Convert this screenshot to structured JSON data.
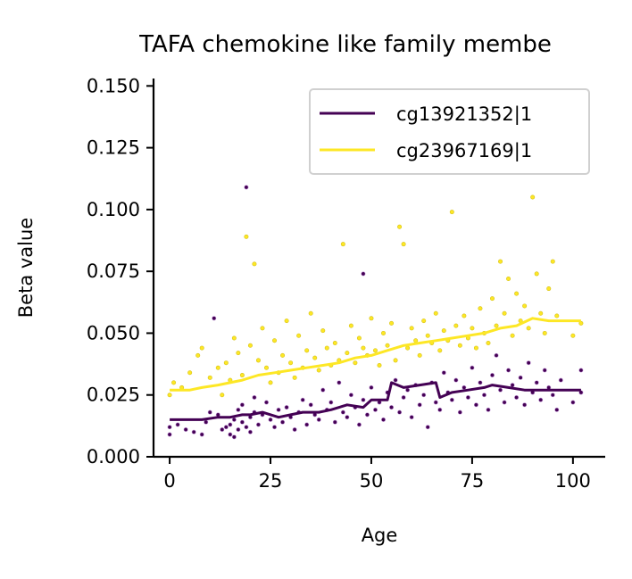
{
  "chart_data": {
    "type": "scatter",
    "title": "TAFA chemokine like family membe",
    "xlabel": "Age",
    "ylabel": "Beta value",
    "xlim": [
      -4,
      108
    ],
    "ylim": [
      0,
      0.153
    ],
    "xticks": [
      0,
      25,
      50,
      75,
      100
    ],
    "xtick_labels": [
      "0",
      "25",
      "50",
      "75",
      "100"
    ],
    "yticks": [
      0.0,
      0.025,
      0.05,
      0.075,
      0.1,
      0.125,
      0.15
    ],
    "ytick_labels": [
      "0.000",
      "0.025",
      "0.050",
      "0.075",
      "0.100",
      "0.125",
      "0.150"
    ],
    "grid": false,
    "legend": {
      "position": "top-right"
    },
    "series": [
      {
        "name": "cg13921352|1",
        "color": "#440154",
        "trend": [
          [
            0,
            0.015
          ],
          [
            8,
            0.015
          ],
          [
            12,
            0.016
          ],
          [
            15,
            0.016
          ],
          [
            18,
            0.017
          ],
          [
            20,
            0.017
          ],
          [
            23,
            0.018
          ],
          [
            27,
            0.016
          ],
          [
            30,
            0.017
          ],
          [
            33,
            0.018
          ],
          [
            37,
            0.018
          ],
          [
            40,
            0.019
          ],
          [
            44,
            0.021
          ],
          [
            48,
            0.02
          ],
          [
            50,
            0.023
          ],
          [
            54,
            0.023
          ],
          [
            55,
            0.03
          ],
          [
            58,
            0.028
          ],
          [
            62,
            0.029
          ],
          [
            66,
            0.03
          ],
          [
            67,
            0.024
          ],
          [
            70,
            0.026
          ],
          [
            74,
            0.027
          ],
          [
            78,
            0.028
          ],
          [
            80,
            0.029
          ],
          [
            84,
            0.028
          ],
          [
            88,
            0.027
          ],
          [
            92,
            0.027
          ],
          [
            102,
            0.027
          ]
        ],
        "points": [
          [
            0,
            0.009
          ],
          [
            0,
            0.012
          ],
          [
            2,
            0.013
          ],
          [
            4,
            0.011
          ],
          [
            6,
            0.01
          ],
          [
            8,
            0.009
          ],
          [
            9,
            0.014
          ],
          [
            10,
            0.018
          ],
          [
            11,
            0.056
          ],
          [
            12,
            0.017
          ],
          [
            13,
            0.011
          ],
          [
            14,
            0.012
          ],
          [
            15,
            0.009
          ],
          [
            15,
            0.013
          ],
          [
            16,
            0.015
          ],
          [
            16,
            0.008
          ],
          [
            17,
            0.019
          ],
          [
            17,
            0.011
          ],
          [
            18,
            0.014
          ],
          [
            18,
            0.021
          ],
          [
            19,
            0.109
          ],
          [
            19,
            0.012
          ],
          [
            20,
            0.016
          ],
          [
            20,
            0.01
          ],
          [
            21,
            0.018
          ],
          [
            21,
            0.024
          ],
          [
            22,
            0.013
          ],
          [
            23,
            0.017
          ],
          [
            24,
            0.022
          ],
          [
            25,
            0.015
          ],
          [
            26,
            0.012
          ],
          [
            27,
            0.019
          ],
          [
            28,
            0.014
          ],
          [
            29,
            0.02
          ],
          [
            30,
            0.016
          ],
          [
            31,
            0.011
          ],
          [
            32,
            0.018
          ],
          [
            33,
            0.023
          ],
          [
            34,
            0.013
          ],
          [
            35,
            0.021
          ],
          [
            36,
            0.017
          ],
          [
            37,
            0.015
          ],
          [
            38,
            0.027
          ],
          [
            39,
            0.019
          ],
          [
            40,
            0.022
          ],
          [
            41,
            0.014
          ],
          [
            42,
            0.03
          ],
          [
            43,
            0.018
          ],
          [
            44,
            0.016
          ],
          [
            45,
            0.025
          ],
          [
            46,
            0.02
          ],
          [
            47,
            0.013
          ],
          [
            48,
            0.074
          ],
          [
            48,
            0.023
          ],
          [
            49,
            0.017
          ],
          [
            50,
            0.028
          ],
          [
            51,
            0.019
          ],
          [
            52,
            0.022
          ],
          [
            53,
            0.015
          ],
          [
            54,
            0.026
          ],
          [
            55,
            0.02
          ],
          [
            56,
            0.031
          ],
          [
            57,
            0.018
          ],
          [
            58,
            0.024
          ],
          [
            59,
            0.027
          ],
          [
            60,
            0.016
          ],
          [
            61,
            0.029
          ],
          [
            62,
            0.021
          ],
          [
            63,
            0.025
          ],
          [
            64,
            0.012
          ],
          [
            65,
            0.03
          ],
          [
            66,
            0.022
          ],
          [
            67,
            0.019
          ],
          [
            68,
            0.034
          ],
          [
            69,
            0.026
          ],
          [
            70,
            0.023
          ],
          [
            71,
            0.031
          ],
          [
            72,
            0.018
          ],
          [
            73,
            0.028
          ],
          [
            74,
            0.024
          ],
          [
            75,
            0.036
          ],
          [
            76,
            0.021
          ],
          [
            77,
            0.03
          ],
          [
            78,
            0.025
          ],
          [
            79,
            0.019
          ],
          [
            80,
            0.033
          ],
          [
            81,
            0.041
          ],
          [
            82,
            0.027
          ],
          [
            83,
            0.022
          ],
          [
            84,
            0.035
          ],
          [
            85,
            0.029
          ],
          [
            86,
            0.024
          ],
          [
            87,
            0.032
          ],
          [
            88,
            0.021
          ],
          [
            89,
            0.038
          ],
          [
            90,
            0.026
          ],
          [
            91,
            0.03
          ],
          [
            92,
            0.023
          ],
          [
            93,
            0.035
          ],
          [
            94,
            0.028
          ],
          [
            95,
            0.025
          ],
          [
            96,
            0.019
          ],
          [
            97,
            0.031
          ],
          [
            100,
            0.022
          ],
          [
            102,
            0.035
          ],
          [
            102,
            0.026
          ]
        ]
      },
      {
        "name": "cg23967169|1",
        "color": "#fde725",
        "trend": [
          [
            0,
            0.027
          ],
          [
            5,
            0.027
          ],
          [
            8,
            0.028
          ],
          [
            12,
            0.029
          ],
          [
            15,
            0.03
          ],
          [
            18,
            0.031
          ],
          [
            22,
            0.033
          ],
          [
            26,
            0.034
          ],
          [
            30,
            0.035
          ],
          [
            34,
            0.036
          ],
          [
            38,
            0.037
          ],
          [
            42,
            0.038
          ],
          [
            46,
            0.04
          ],
          [
            50,
            0.041
          ],
          [
            54,
            0.043
          ],
          [
            58,
            0.045
          ],
          [
            62,
            0.046
          ],
          [
            66,
            0.047
          ],
          [
            70,
            0.048
          ],
          [
            74,
            0.049
          ],
          [
            78,
            0.05
          ],
          [
            82,
            0.052
          ],
          [
            86,
            0.053
          ],
          [
            90,
            0.056
          ],
          [
            94,
            0.055
          ],
          [
            102,
            0.055
          ]
        ],
        "points": [
          [
            0,
            0.025
          ],
          [
            1,
            0.03
          ],
          [
            3,
            0.028
          ],
          [
            5,
            0.034
          ],
          [
            7,
            0.041
          ],
          [
            8,
            0.044
          ],
          [
            10,
            0.032
          ],
          [
            12,
            0.036
          ],
          [
            13,
            0.025
          ],
          [
            14,
            0.038
          ],
          [
            15,
            0.031
          ],
          [
            16,
            0.048
          ],
          [
            17,
            0.042
          ],
          [
            18,
            0.033
          ],
          [
            19,
            0.089
          ],
          [
            20,
            0.045
          ],
          [
            21,
            0.078
          ],
          [
            22,
            0.039
          ],
          [
            23,
            0.052
          ],
          [
            24,
            0.036
          ],
          [
            25,
            0.03
          ],
          [
            26,
            0.047
          ],
          [
            27,
            0.034
          ],
          [
            28,
            0.041
          ],
          [
            29,
            0.055
          ],
          [
            30,
            0.038
          ],
          [
            31,
            0.032
          ],
          [
            32,
            0.049
          ],
          [
            33,
            0.036
          ],
          [
            34,
            0.043
          ],
          [
            35,
            0.058
          ],
          [
            36,
            0.04
          ],
          [
            37,
            0.035
          ],
          [
            38,
            0.051
          ],
          [
            39,
            0.044
          ],
          [
            40,
            0.037
          ],
          [
            41,
            0.046
          ],
          [
            42,
            0.039
          ],
          [
            43,
            0.086
          ],
          [
            44,
            0.042
          ],
          [
            45,
            0.053
          ],
          [
            46,
            0.038
          ],
          [
            47,
            0.048
          ],
          [
            48,
            0.044
          ],
          [
            49,
            0.041
          ],
          [
            50,
            0.056
          ],
          [
            51,
            0.043
          ],
          [
            52,
            0.037
          ],
          [
            53,
            0.05
          ],
          [
            54,
            0.045
          ],
          [
            55,
            0.054
          ],
          [
            56,
            0.039
          ],
          [
            57,
            0.093
          ],
          [
            58,
            0.086
          ],
          [
            59,
            0.044
          ],
          [
            60,
            0.052
          ],
          [
            61,
            0.047
          ],
          [
            62,
            0.041
          ],
          [
            63,
            0.055
          ],
          [
            64,
            0.049
          ],
          [
            65,
            0.046
          ],
          [
            66,
            0.058
          ],
          [
            67,
            0.043
          ],
          [
            68,
            0.051
          ],
          [
            69,
            0.047
          ],
          [
            70,
            0.099
          ],
          [
            71,
            0.053
          ],
          [
            72,
            0.045
          ],
          [
            73,
            0.057
          ],
          [
            74,
            0.048
          ],
          [
            75,
            0.052
          ],
          [
            76,
            0.044
          ],
          [
            77,
            0.06
          ],
          [
            78,
            0.05
          ],
          [
            79,
            0.046
          ],
          [
            80,
            0.064
          ],
          [
            81,
            0.053
          ],
          [
            82,
            0.079
          ],
          [
            83,
            0.058
          ],
          [
            84,
            0.072
          ],
          [
            85,
            0.049
          ],
          [
            86,
            0.066
          ],
          [
            87,
            0.055
          ],
          [
            88,
            0.061
          ],
          [
            89,
            0.052
          ],
          [
            90,
            0.105
          ],
          [
            91,
            0.074
          ],
          [
            92,
            0.058
          ],
          [
            93,
            0.05
          ],
          [
            94,
            0.068
          ],
          [
            95,
            0.079
          ],
          [
            96,
            0.057
          ],
          [
            100,
            0.049
          ],
          [
            102,
            0.054
          ]
        ]
      }
    ]
  }
}
